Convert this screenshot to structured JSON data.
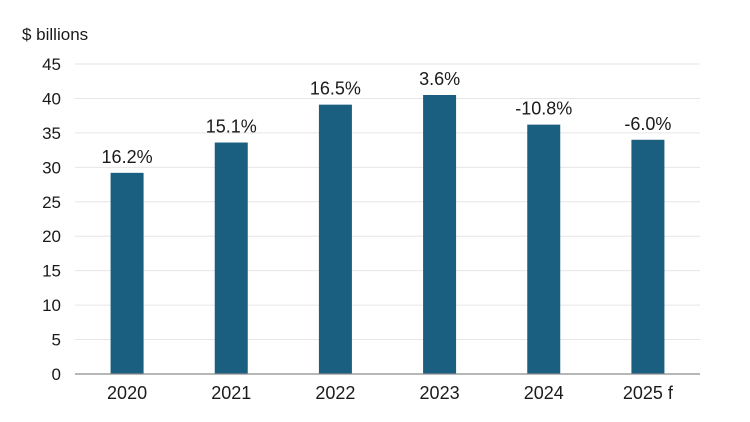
{
  "chart_data": {
    "type": "bar",
    "title": "",
    "ylabel": "$ billions",
    "xlabel": "",
    "categories": [
      "2020",
      "2021",
      "2022",
      "2023",
      "2024",
      "2025 f"
    ],
    "values": [
      29.2,
      33.6,
      39.1,
      40.5,
      36.2,
      34.0
    ],
    "data_labels": [
      "16.2%",
      "15.1%",
      "16.5%",
      "3.6%",
      "-10.8%",
      "-6.0%"
    ],
    "ylim": [
      0,
      45
    ],
    "yticks": [
      0,
      5,
      10,
      15,
      20,
      25,
      30,
      35,
      40,
      45
    ],
    "grid": true,
    "legend": "none",
    "bar_color": "#1a5e80",
    "grid_color": "#e6e6e6",
    "axis_color": "#8c8c8c"
  }
}
